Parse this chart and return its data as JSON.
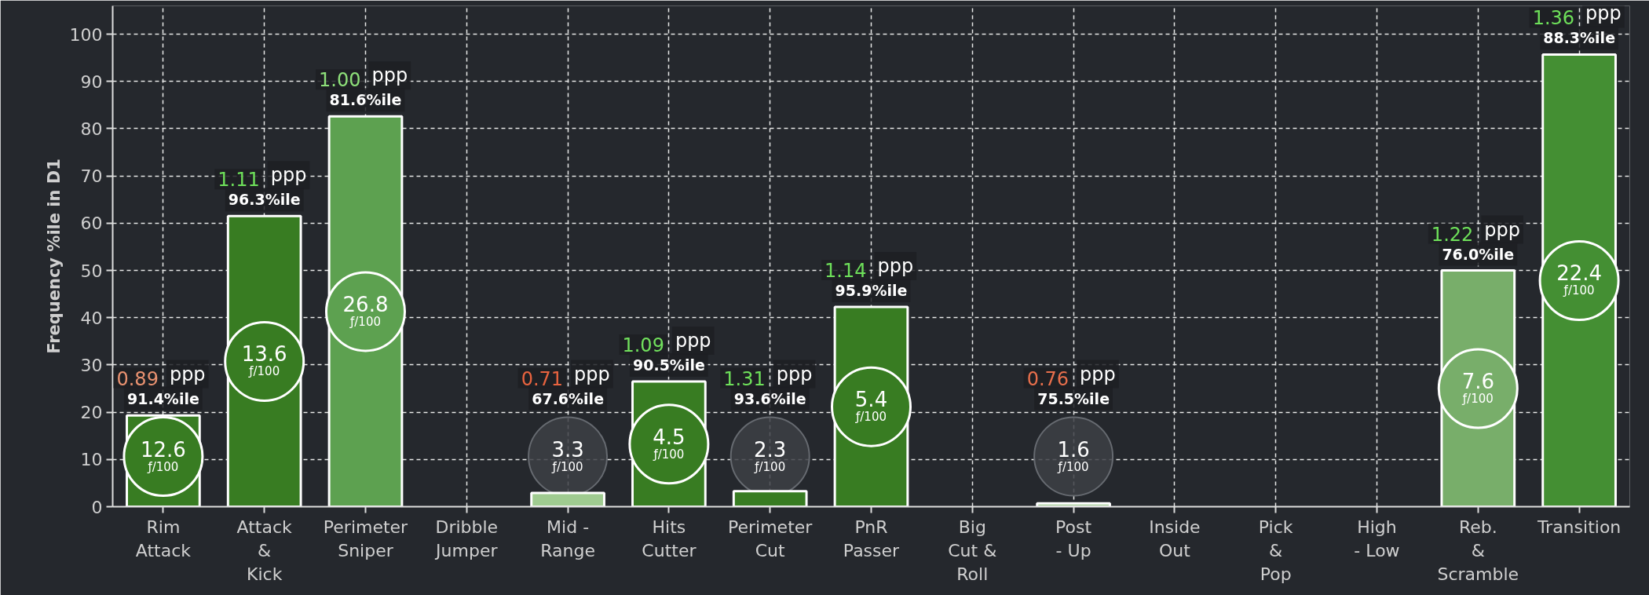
{
  "chart_data": {
    "type": "bar",
    "ylabel": "Frequency %ile in D1",
    "categories": [
      "Rim\nAttack",
      "Attack\n&\nKick",
      "Perimeter\nSniper",
      "Dribble\nJumper",
      "Mid -\nRange",
      "Hits\nCutter",
      "Perimeter\nCut",
      "PnR\nPasser",
      "Big\nCut &\nRoll",
      "Post\n- Up",
      "Inside\nOut",
      "Pick\n&\nPop",
      "High\n- Low",
      "Reb.\n&\nScramble",
      "Transition"
    ],
    "values": [
      19.3,
      61.5,
      82.6,
      null,
      2.9,
      26.5,
      3.3,
      42.3,
      null,
      0.7,
      null,
      null,
      null,
      50.0,
      95.7
    ],
    "colors": [
      "#387c22",
      "#387c22",
      "#5da150",
      "#387c22",
      "#9fcb90",
      "#387c22",
      "#387c22",
      "#387c22",
      "#387c22",
      "#9fcb90",
      "#387c22",
      "#387c22",
      "#387c22",
      "#78ae6a",
      "#448f33"
    ],
    "ylim": [
      0,
      106
    ],
    "yticks": [
      0,
      10,
      20,
      30,
      40,
      50,
      60,
      70,
      80,
      90,
      100
    ],
    "grid": true,
    "annotations": [
      "0.89 ppp",
      "91.4%ile",
      "12.6",
      "ƒ/100",
      "1.11 ppp",
      "96.3%ile",
      "13.6",
      "ƒ/100",
      "1.00 ppp",
      "81.6%ile",
      "26.8",
      "ƒ/100",
      "0.71 ppp",
      "67.6%ile",
      "3.3",
      "ƒ/100",
      "1.09 ppp",
      "90.5%ile",
      "4.5",
      "ƒ/100",
      "1.31 ppp",
      "93.6%ile",
      "2.3",
      "ƒ/100",
      "1.14 ppp",
      "95.9%ile",
      "5.4",
      "ƒ/100",
      "0.76 ppp",
      "75.5%ile",
      "1.6",
      "ƒ/100",
      "1.22 ppp",
      "76.0%ile",
      "7.6",
      "ƒ/100",
      "1.36 ppp",
      "88.3%ile",
      "22.4",
      "ƒ/100"
    ]
  }
}
